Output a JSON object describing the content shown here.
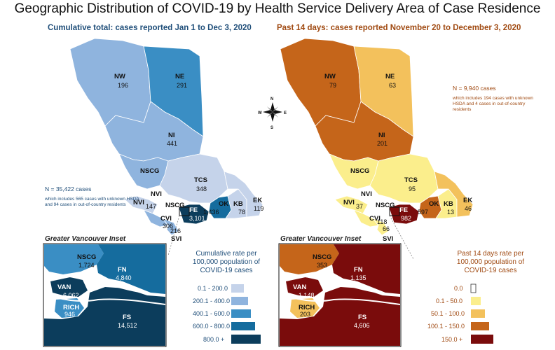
{
  "title": "Geographic Distribution of COVID-19 by Health Service Delivery Area of Case Residence",
  "left_panel": {
    "subtitle": "Cumulative total: cases reported Jan 1 to Dec 3, 2020",
    "total": "N = 35,422 cases",
    "note": "which includes 565 cases with unknown HSDA and 94 cases in out-of-country residents",
    "inset_title": "Greater Vancouver Inset",
    "legend_title": "Cumulative rate per 100,000 population of COVID-19 cases",
    "legend": [
      {
        "label": "0.1 - 200.0",
        "color": "#c5d3ea"
      },
      {
        "label": "200.1 - 400.0",
        "color": "#8fb4de"
      },
      {
        "label": "400.1 - 600.0",
        "color": "#3a8ec4"
      },
      {
        "label": "600.0 - 800.0",
        "color": "#156c9e"
      },
      {
        "label": "800.0 +",
        "color": "#0c3d5c"
      }
    ],
    "regions": {
      "NW": "196",
      "NE": "291",
      "NI": "441",
      "NSCG": "",
      "TCS": "348",
      "NVI": "",
      "CVI": "306",
      "SVI": "216",
      "FE": "3,101",
      "OK": "1,436",
      "KB": "78",
      "EK": "119",
      "NVI_val": "147"
    },
    "inset": {
      "NSCG": "1,724",
      "FN": "4,840",
      "VAN": "6,062",
      "RICH": "946",
      "FS": "14,512"
    }
  },
  "right_panel": {
    "subtitle": "Past 14 days: cases reported November 20 to December 3, 2020",
    "total": "N = 9,940 cases",
    "note": "which includes 194 cases with unknown HSDA and 4 cases in out-of-country residents",
    "inset_title": "Greater Vancouver Inset",
    "legend_title": "Past 14 days rate per 100,000 population of COVID-19 cases",
    "legend": [
      {
        "label": "0.0",
        "color": "#ffffff"
      },
      {
        "label": "0.1 - 50.0",
        "color": "#fbee8c"
      },
      {
        "label": "50.1 - 100.0",
        "color": "#f3c15c"
      },
      {
        "label": "100.1 - 150.0",
        "color": "#c5651a"
      },
      {
        "label": "150.0 +",
        "color": "#7a0c0c"
      }
    ],
    "regions": {
      "NW": "79",
      "NE": "63",
      "NI": "201",
      "TCS": "95",
      "NVI_val": "37",
      "CVI": "118",
      "SVI": "66",
      "FE": "982",
      "OK": "597",
      "KB": "13",
      "EK": "46"
    },
    "inset": {
      "NSCG": "353",
      "FN": "1,135",
      "VAN": "1,148",
      "RICH": "203",
      "FS": "4,606"
    }
  },
  "labels": {
    "NW": "NW",
    "NE": "NE",
    "NI": "NI",
    "NSCG": "NSCG",
    "TCS": "TCS",
    "NVI": "NVI",
    "CVI": "CVI",
    "SVI": "SVI",
    "FE": "FE",
    "OK": "OK",
    "KB": "KB",
    "EK": "EK",
    "FN": "FN",
    "VAN": "VAN",
    "RICH": "RICH",
    "FS": "FS"
  },
  "compass": {
    "N": "N",
    "S": "S",
    "E": "E",
    "W": "W"
  }
}
